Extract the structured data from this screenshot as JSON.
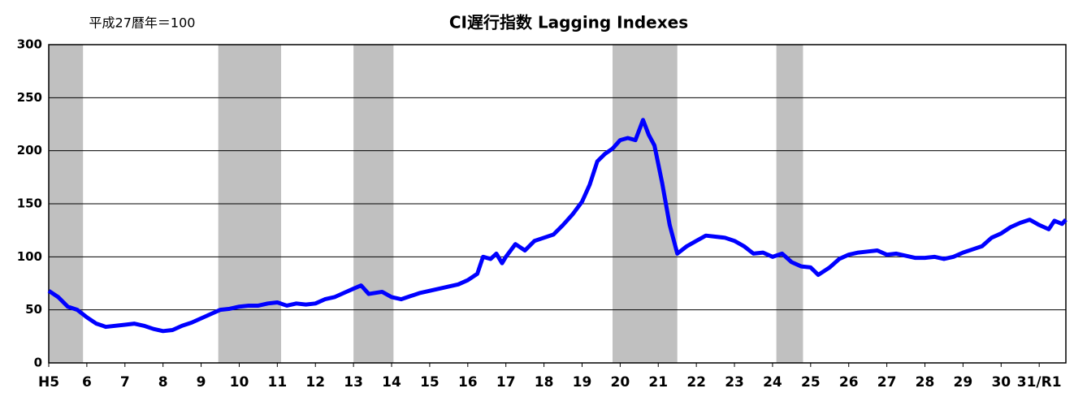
{
  "chart_data": {
    "type": "line",
    "title": "CI遅行指数 Lagging Indexes",
    "subtitle": "平成27暦年＝100",
    "x": [
      5.0,
      5.25,
      5.5,
      5.75,
      6.0,
      6.25,
      6.5,
      7.0,
      7.25,
      7.5,
      7.75,
      8.0,
      8.25,
      8.5,
      8.75,
      9.0,
      9.25,
      9.5,
      9.75,
      10.0,
      10.25,
      10.5,
      10.75,
      11.0,
      11.25,
      11.5,
      11.75,
      12.0,
      12.25,
      12.5,
      12.75,
      13.0,
      13.2,
      13.4,
      13.75,
      14.0,
      14.25,
      14.5,
      14.75,
      15.0,
      15.5,
      15.75,
      16.0,
      16.25,
      16.4,
      16.6,
      16.75,
      16.9,
      17.0,
      17.25,
      17.5,
      17.75,
      18.0,
      18.25,
      18.5,
      18.75,
      19.0,
      19.2,
      19.4,
      19.6,
      19.8,
      20.0,
      20.2,
      20.4,
      20.6,
      20.75,
      20.9,
      21.1,
      21.3,
      21.5,
      21.75,
      22.0,
      22.25,
      22.5,
      22.75,
      23.0,
      23.25,
      23.5,
      23.75,
      24.0,
      24.25,
      24.5,
      24.75,
      25.0,
      25.2,
      25.5,
      25.75,
      26.0,
      26.25,
      26.5,
      26.75,
      27.0,
      27.25,
      27.5,
      27.75,
      28.0,
      28.25,
      28.5,
      28.75,
      29.0,
      29.25,
      29.5,
      29.75,
      30.0,
      30.25,
      30.5,
      30.75,
      31.0,
      31.25,
      31.4,
      31.6,
      31.7
    ],
    "series": [
      {
        "color": "#0000ff",
        "values": [
          68,
          62,
          53,
          50,
          43,
          37,
          34,
          36,
          37,
          35,
          32,
          30,
          31,
          35,
          38,
          42,
          46,
          50,
          51,
          53,
          54,
          54,
          56,
          57,
          54,
          56,
          55,
          56,
          60,
          62,
          66,
          70,
          73,
          65,
          67,
          62,
          60,
          63,
          66,
          68,
          72,
          74,
          78,
          84,
          100,
          98,
          103,
          94,
          100,
          112,
          106,
          115,
          118,
          121,
          130,
          140,
          152,
          168,
          190,
          197,
          202,
          210,
          212,
          210,
          229,
          215,
          205,
          170,
          130,
          103,
          110,
          115,
          120,
          119,
          118,
          115,
          110,
          103,
          104,
          100,
          103,
          95,
          91,
          90,
          83,
          90,
          98,
          102,
          104,
          105,
          106,
          102,
          103,
          101,
          99,
          99,
          100,
          98,
          100,
          104,
          107,
          110,
          118,
          122,
          128,
          132,
          135,
          130,
          126,
          134,
          131,
          135
        ]
      }
    ],
    "shaded_periods": [
      [
        5.0,
        5.9
      ],
      [
        9.45,
        11.1
      ],
      [
        13.0,
        14.05
      ],
      [
        19.8,
        21.5
      ],
      [
        24.1,
        24.8
      ]
    ],
    "shade_color": "#c0c0c0",
    "xlim": [
      5,
      31.7
    ],
    "xticks": [
      {
        "value": 5,
        "label": "H5"
      },
      6,
      7,
      8,
      9,
      10,
      11,
      12,
      13,
      14,
      15,
      16,
      17,
      18,
      19,
      20,
      21,
      22,
      23,
      24,
      25,
      26,
      27,
      28,
      29,
      30,
      {
        "value": 31,
        "label": "31/R1"
      }
    ],
    "ylim": [
      0,
      300
    ],
    "yticks": [
      0,
      50,
      100,
      150,
      200,
      250,
      300
    ],
    "grid": true
  }
}
